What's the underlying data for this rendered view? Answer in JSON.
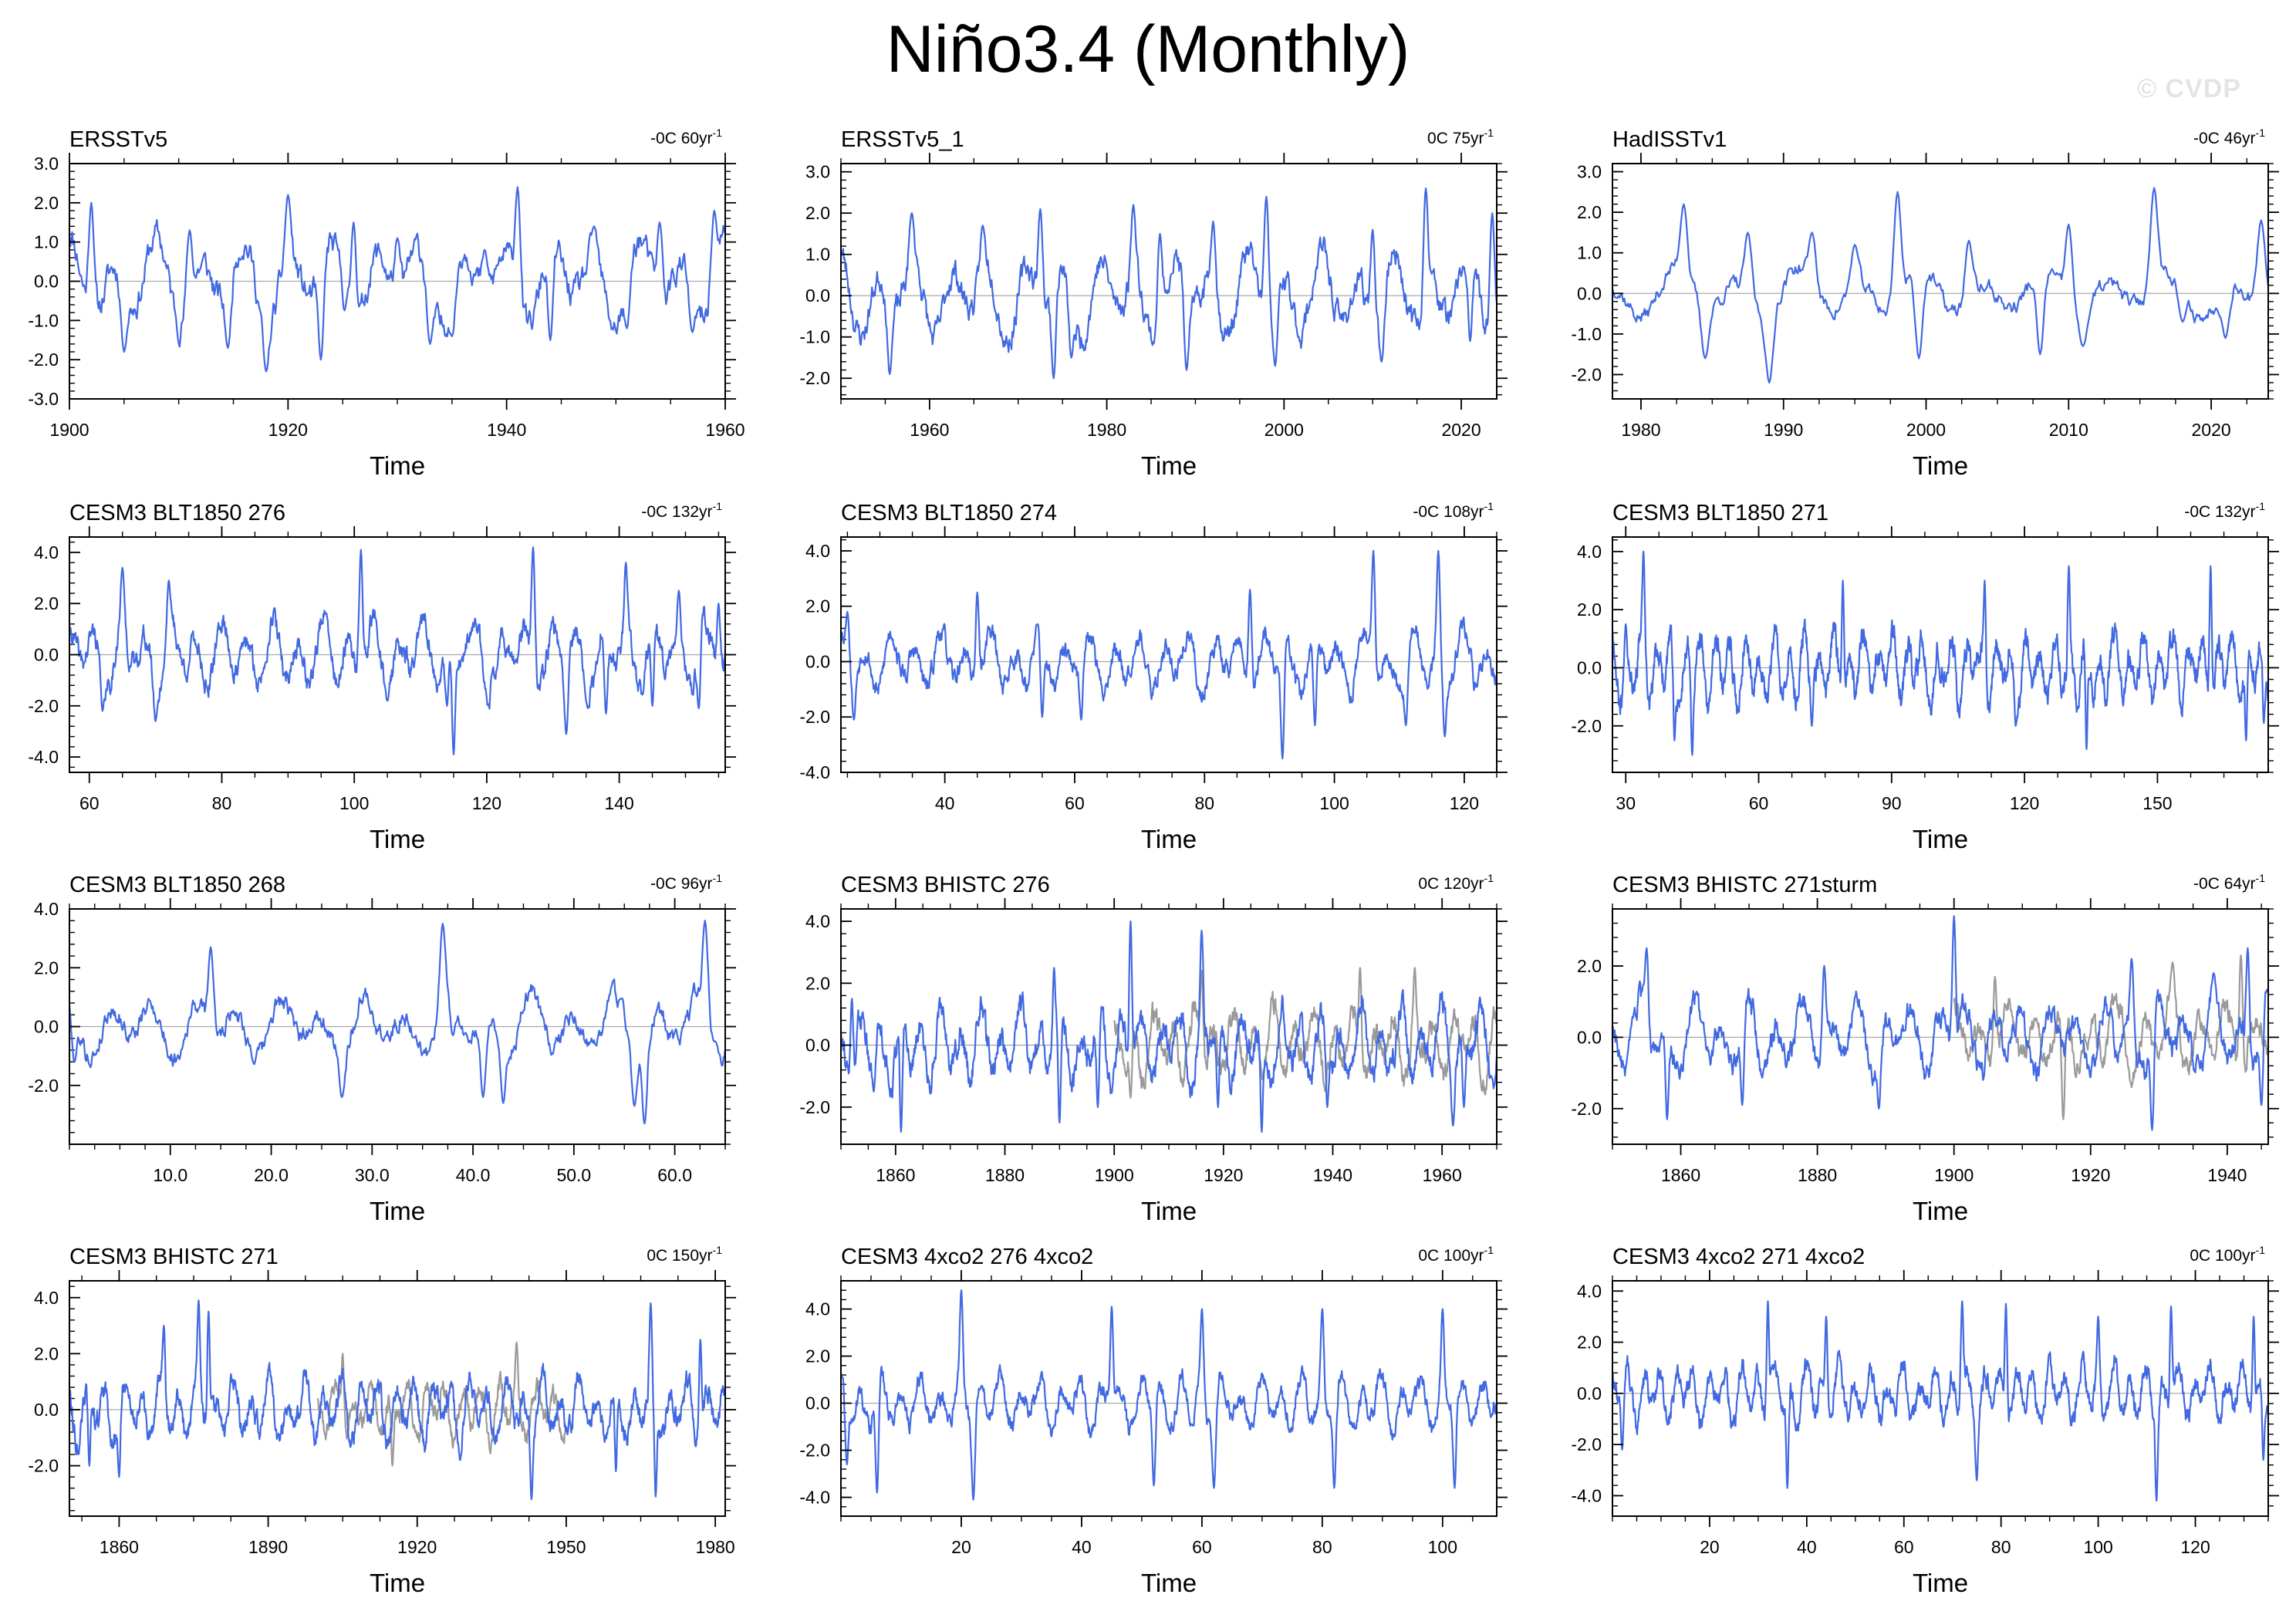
{
  "page": {
    "title": "Niño3.4 (Monthly)",
    "watermark": "© CVDP"
  },
  "style": {
    "line_color": "#4169e1",
    "gray_color": "#9a9a9a",
    "zero_color": "#a9a9a9"
  },
  "chart_data": [
    {
      "type": "line",
      "title": "ERSSTv5",
      "trend": "-0C 60yr",
      "trend_exp": "-1",
      "xlabel": "Time",
      "xlim": [
        1900,
        1960
      ],
      "ylim": [
        -3,
        3
      ],
      "xticks": [
        1900,
        1920,
        1940,
        1960
      ],
      "yticks": [
        "-3.0",
        "-2.0",
        "-1.0",
        "0.0",
        "1.0",
        "2.0",
        "3.0"
      ],
      "ytick_values": [
        -3,
        -2,
        -1,
        0,
        1,
        2,
        3
      ],
      "amplitude": 1.0,
      "period_months": 48,
      "seed": 11,
      "series": [
        {
          "x": [
            1902,
            1905,
            1911,
            1914.5,
            1918,
            1920,
            1923,
            1926,
            1930,
            1933,
            1935,
            1938,
            1941,
            1944,
            1948,
            1951,
            1954,
            1957,
            1959
          ],
          "y": [
            2.0,
            -1.8,
            1.3,
            -1.7,
            -2.3,
            2.2,
            -2.0,
            1.5,
            1.1,
            -1.6,
            -1.4,
            0.8,
            2.4,
            -1.5,
            1.4,
            -1.2,
            1.5,
            -1.3,
            1.8
          ]
        }
      ]
    },
    {
      "type": "line",
      "title": "ERSSTv5_1",
      "trend": "0C 75yr",
      "trend_exp": "-1",
      "xlabel": "Time",
      "xlim": [
        1950,
        2024
      ],
      "ylim": [
        -2.5,
        3.2
      ],
      "xticks": [
        1960,
        1980,
        2000,
        2020
      ],
      "yticks": [
        "-2.0",
        "-1.0",
        "0.0",
        "1.0",
        "2.0",
        "3.0"
      ],
      "ytick_values": [
        -2,
        -1,
        0,
        1,
        2,
        3
      ],
      "amplitude": 0.9,
      "period_months": 50,
      "seed": 23,
      "series": [
        {
          "x": [
            1955.5,
            1958,
            1966,
            1972.5,
            1974,
            1976,
            1983,
            1986,
            1989,
            1992,
            1998,
            1999,
            2010,
            2011,
            2016,
            2021,
            2023.5
          ],
          "y": [
            -1.9,
            2.0,
            1.7,
            2.1,
            -2.0,
            -1.5,
            2.2,
            1.5,
            -1.8,
            1.8,
            2.4,
            -1.7,
            1.6,
            -1.6,
            2.6,
            -1.1,
            2.0
          ]
        }
      ]
    },
    {
      "type": "line",
      "title": "HadISSTv1",
      "trend": "-0C 46yr",
      "trend_exp": "-1",
      "xlabel": "Time",
      "xlim": [
        1978,
        2024
      ],
      "ylim": [
        -2.6,
        3.2
      ],
      "xticks": [
        1980,
        1990,
        2000,
        2010,
        2020
      ],
      "yticks": [
        "-2.0",
        "-1.0",
        "0.0",
        "1.0",
        "2.0",
        "3.0"
      ],
      "ytick_values": [
        -2,
        -1,
        0,
        1,
        2,
        3
      ],
      "amplitude": 0.55,
      "period_months": 52,
      "seed": 37,
      "series": [
        {
          "x": [
            1983,
            1984.5,
            1987.5,
            1989,
            1992,
            1995,
            1998,
            1999.5,
            2003,
            2008,
            2010,
            2011,
            2016,
            2018,
            2021,
            2023.5
          ],
          "y": [
            2.2,
            -1.6,
            1.5,
            -2.2,
            1.5,
            1.2,
            2.5,
            -1.6,
            1.3,
            -1.5,
            1.7,
            -1.3,
            2.6,
            -0.7,
            -1.1,
            1.8
          ]
        }
      ]
    },
    {
      "type": "line",
      "title": "CESM3 BLT1850 276",
      "trend": "-0C 132yr",
      "trend_exp": "-1",
      "xlabel": "Time",
      "xlim": [
        57,
        156
      ],
      "ylim": [
        -4.6,
        4.6
      ],
      "xticks": [
        60,
        80,
        100,
        120,
        140
      ],
      "yticks": [
        "-4.0",
        "-2.0",
        "0.0",
        "2.0",
        "4.0"
      ],
      "ytick_values": [
        -4,
        -2,
        0,
        2,
        4
      ],
      "amplitude": 1.2,
      "period_months": 46,
      "seed": 41,
      "series": [
        {
          "x": [
            62,
            65,
            70,
            72,
            101,
            105,
            114,
            115,
            127,
            132,
            138,
            141,
            145,
            149,
            152,
            155
          ],
          "y": [
            -2.2,
            3.4,
            -2.6,
            2.9,
            4.1,
            -1.8,
            -2.0,
            -3.9,
            4.2,
            -3.1,
            -2.3,
            3.6,
            -2.0,
            2.5,
            -2.1,
            2.0
          ]
        }
      ]
    },
    {
      "type": "line",
      "title": "CESM3 BLT1850 274",
      "trend": "-0C 108yr",
      "trend_exp": "-1",
      "xlabel": "Time",
      "xlim": [
        24,
        125
      ],
      "ylim": [
        -4,
        4.5
      ],
      "xticks": [
        40,
        60,
        80,
        100,
        120
      ],
      "yticks": [
        "-4.0",
        "-2.0",
        "0.0",
        "2.0",
        "4.0"
      ],
      "ytick_values": [
        -4,
        -2,
        0,
        2,
        4
      ],
      "amplitude": 1.0,
      "period_months": 46,
      "seed": 53,
      "series": [
        {
          "x": [
            25,
            26,
            45,
            55,
            61,
            87,
            92,
            97,
            106,
            111,
            116,
            117
          ],
          "y": [
            1.8,
            -2.1,
            2.5,
            -2.0,
            -2.1,
            2.6,
            -3.5,
            -2.3,
            4.0,
            -2.3,
            4.0,
            -2.7
          ]
        }
      ]
    },
    {
      "type": "line",
      "title": "CESM3 BLT1850 271",
      "trend": "-0C 132yr",
      "trend_exp": "-1",
      "xlabel": "Time",
      "xlim": [
        27,
        175
      ],
      "ylim": [
        -3.6,
        4.5
      ],
      "xticks": [
        30,
        60,
        90,
        120,
        150
      ],
      "yticks": [
        "-2.0",
        "0.0",
        "2.0",
        "4.0"
      ],
      "ytick_values": [
        -2,
        0,
        2,
        4
      ],
      "amplitude": 1.1,
      "period_months": 40,
      "seed": 67,
      "series": [
        {
          "x": [
            30,
            34,
            41,
            45,
            72,
            79,
            111,
            118,
            130,
            134,
            162,
            170,
            174
          ],
          "y": [
            1.5,
            4.0,
            -2.5,
            -3.0,
            -2.0,
            3.0,
            3.0,
            -2.0,
            3.5,
            -2.8,
            3.5,
            -2.5,
            -1.9
          ]
        }
      ]
    },
    {
      "type": "line",
      "title": "CESM3 BLT1850 268",
      "trend": "-0C 96yr",
      "trend_exp": "-1",
      "xlabel": "Time",
      "xlim": [
        0,
        65
      ],
      "ylim": [
        -4,
        4
      ],
      "xticks": [
        10,
        20,
        30,
        40,
        50,
        60
      ],
      "xtick_labels": [
        "10.0",
        "20.0",
        "30.0",
        "40.0",
        "50.0",
        "60.0"
      ],
      "yticks": [
        "-2.0",
        "0.0",
        "2.0",
        "4.0"
      ],
      "ytick_values": [
        -2,
        0,
        2,
        4
      ],
      "amplitude": 0.9,
      "period_months": 50,
      "seed": 79,
      "series": [
        {
          "x": [
            0.5,
            14,
            27,
            37,
            38,
            41,
            43,
            56,
            57,
            63,
            64
          ],
          "y": [
            -1.2,
            2.7,
            -2.4,
            3.5,
            -0.3,
            -2.4,
            -2.6,
            -2.7,
            -3.3,
            3.6,
            -0.5
          ]
        }
      ]
    },
    {
      "type": "line",
      "title": "CESM3 BHISTC 276",
      "trend": "0C 120yr",
      "trend_exp": "-1",
      "xlabel": "Time",
      "xlim": [
        1850,
        1970
      ],
      "ylim": [
        -3.2,
        4.4
      ],
      "xticks": [
        1860,
        1880,
        1900,
        1920,
        1940,
        1960
      ],
      "yticks": [
        "-2.0",
        "0.0",
        "2.0",
        "4.0"
      ],
      "ytick_values": [
        -2,
        0,
        2,
        4
      ],
      "amplitude": 1.1,
      "period_months": 44,
      "seed": 91,
      "series": [
        {
          "name": "",
          "x": [
            1852,
            1856,
            1861,
            1889,
            1890,
            1897,
            1903,
            1916,
            1919,
            1927,
            1939,
            1962,
            1964,
            1969
          ],
          "y": [
            1.5,
            -1.5,
            -2.8,
            2.5,
            -2.5,
            -2.0,
            4.0,
            3.7,
            -2.0,
            -2.8,
            -2.0,
            -2.6,
            -2.0,
            -1.0
          ]
        }
      ],
      "overlay": {
        "xlim": [
          1900,
          1970
        ],
        "amplitude": 1.0,
        "seed": 97,
        "peaks": [
          [
            1903,
            -1.7
          ],
          [
            1916,
            2.4
          ],
          [
            1945,
            2.5
          ],
          [
            1955,
            2.5
          ]
        ]
      }
    },
    {
      "type": "line",
      "title": "CESM3 BHISTC 271sturm",
      "trend": "-0C 64yr",
      "trend_exp": "-1",
      "xlabel": "Time",
      "xlim": [
        1850,
        1946
      ],
      "ylim": [
        -3.0,
        3.6
      ],
      "xticks": [
        1860,
        1880,
        1900,
        1920,
        1940
      ],
      "yticks": [
        "-2.0",
        "0.0",
        "2.0"
      ],
      "ytick_values": [
        -2,
        0,
        2
      ],
      "amplitude": 0.9,
      "period_months": 48,
      "seed": 103,
      "series": [
        {
          "name": "",
          "x": [
            1855,
            1858,
            1869,
            1881,
            1889,
            1900,
            1926,
            1929,
            1938,
            1943,
            1945
          ],
          "y": [
            2.5,
            -2.3,
            -1.9,
            2.0,
            -2.0,
            3.4,
            2.2,
            -2.6,
            1.8,
            2.5,
            -1.9
          ]
        }
      ],
      "overlay": {
        "xlim": [
          1900,
          1946
        ],
        "amplitude": 0.9,
        "seed": 109,
        "peaks": [
          [
            1906,
            1.7
          ],
          [
            1916,
            -2.3
          ],
          [
            1932,
            2.1
          ],
          [
            1942,
            2.3
          ]
        ]
      }
    },
    {
      "type": "line",
      "title": "CESM3 BHISTC 271",
      "trend": "0C 150yr",
      "trend_exp": "-1",
      "xlabel": "Time",
      "xlim": [
        1850,
        1982
      ],
      "ylim": [
        -3.8,
        4.6
      ],
      "xticks": [
        1860,
        1890,
        1920,
        1950,
        1980
      ],
      "yticks": [
        "-2.0",
        "0.0",
        "2.0",
        "4.0"
      ],
      "ytick_values": [
        -2,
        0,
        2,
        4
      ],
      "amplitude": 1.0,
      "period_months": 44,
      "seed": 113,
      "series": [
        {
          "name": "",
          "x": [
            1854,
            1860,
            1869,
            1876,
            1878,
            1943,
            1960,
            1967,
            1968,
            1977
          ],
          "y": [
            -2.0,
            -2.4,
            3.0,
            3.9,
            3.5,
            -3.2,
            -2.2,
            3.8,
            -3.1,
            2.5
          ]
        }
      ],
      "overlay": {
        "xlim": [
          1900,
          1950
        ],
        "amplitude": 0.9,
        "seed": 127,
        "peaks": [
          [
            1905,
            2.0
          ],
          [
            1915,
            -2.0
          ],
          [
            1940,
            2.4
          ]
        ]
      }
    },
    {
      "type": "line",
      "title": "CESM3 4xco2 276 4xco2",
      "trend": "0C 100yr",
      "trend_exp": "-1",
      "xlabel": "Time",
      "xlim": [
        0,
        109
      ],
      "ylim": [
        -4.8,
        5.2
      ],
      "xticks": [
        20,
        40,
        60,
        80,
        100
      ],
      "yticks": [
        "-4.0",
        "-2.0",
        "0.0",
        "2.0",
        "4.0"
      ],
      "ytick_values": [
        -4,
        -2,
        0,
        2,
        4
      ],
      "amplitude": 1.0,
      "period_months": 40,
      "seed": 131,
      "series": [
        {
          "x": [
            1,
            6,
            20,
            22,
            45,
            52,
            60,
            62,
            80,
            82,
            100,
            102
          ],
          "y": [
            -2.6,
            -3.8,
            4.8,
            -4.1,
            4.1,
            -3.5,
            4.0,
            -3.6,
            4.0,
            -3.6,
            4.0,
            -3.6
          ]
        }
      ]
    },
    {
      "type": "line",
      "title": "CESM3 4xco2 271 4xco2",
      "trend": "0C 100yr",
      "trend_exp": "-1",
      "xlabel": "Time",
      "xlim": [
        0,
        135
      ],
      "ylim": [
        -4.8,
        4.4
      ],
      "xticks": [
        20,
        40,
        60,
        80,
        100,
        120
      ],
      "yticks": [
        "-4.0",
        "-2.0",
        "0.0",
        "2.0",
        "4.0"
      ],
      "ytick_values": [
        -4,
        -2,
        0,
        2,
        4
      ],
      "amplitude": 1.0,
      "period_months": 40,
      "seed": 139,
      "series": [
        {
          "x": [
            2,
            32,
            36,
            44,
            72,
            75,
            81,
            100,
            112,
            115,
            132,
            134
          ],
          "y": [
            -2.2,
            3.6,
            -3.7,
            3.0,
            3.6,
            -3.4,
            3.5,
            3.0,
            -4.2,
            3.4,
            3.0,
            -2.6
          ]
        }
      ]
    }
  ]
}
